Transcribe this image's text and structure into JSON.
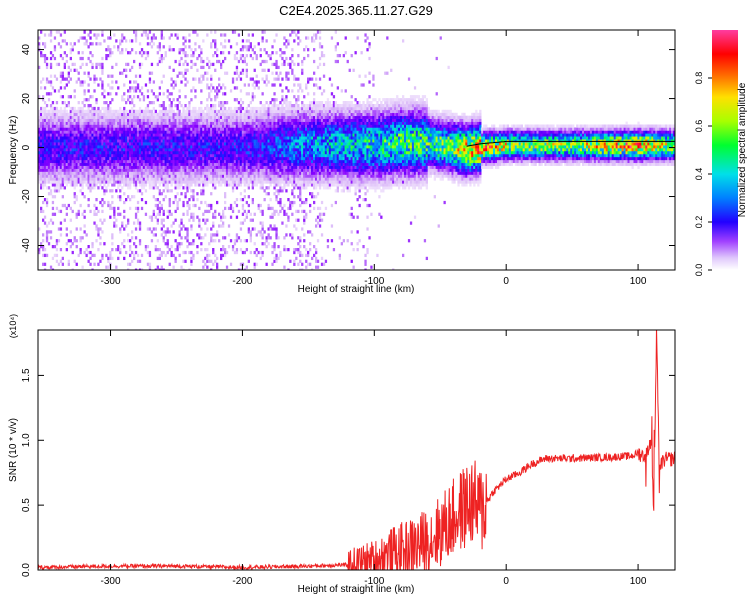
{
  "title": "C2E4.2025.365.11.27.G29",
  "chart_data": [
    {
      "type": "heatmap",
      "xlabel": "Height of straight line (km)",
      "ylabel": "Frequency (Hz)",
      "xlim": [
        -355,
        128
      ],
      "ylim": [
        -50,
        48
      ],
      "xticks": [
        -300,
        -200,
        -100,
        0,
        100
      ],
      "xtick_labels": [
        "-300",
        "-200",
        "-100",
        "0",
        "100"
      ],
      "yticks": [
        -40,
        -20,
        0,
        20,
        40
      ],
      "ytick_labels": [
        "-40",
        "-20",
        "0",
        "20",
        "40"
      ],
      "colorbar": {
        "label": "Normalized spectral amplitude",
        "range": [
          0,
          1
        ],
        "ticks": [
          0.0,
          0.2,
          0.4,
          0.6,
          0.8
        ],
        "tick_labels": [
          "0.0",
          "0.2",
          "0.4",
          "0.6",
          "0.8"
        ],
        "colormap": [
          "#ffffff",
          "#d8b4f8",
          "#8800ff",
          "#2b00ff",
          "#0088ff",
          "#00e0e0",
          "#00ff40",
          "#c0ff00",
          "#ffe000",
          "#ff6000",
          "#ff0000",
          "#ff40b0"
        ]
      },
      "signal_trace": {
        "x": [
          -355,
          -300,
          -250,
          -200,
          -150,
          -100,
          -80,
          -60,
          -40,
          -30,
          -20,
          0,
          20,
          50,
          80,
          100,
          110,
          120,
          128
        ],
        "y": [
          0,
          0,
          0,
          0,
          1,
          1,
          2,
          2,
          0,
          -1,
          0,
          1,
          1,
          1,
          1,
          1,
          1,
          1,
          1
        ],
        "peak_amplitude": [
          0.3,
          0.3,
          0.3,
          0.3,
          0.45,
          0.55,
          0.6,
          0.6,
          0.7,
          0.85,
          0.9,
          0.75,
          0.7,
          0.7,
          0.85,
          0.9,
          0.8,
          0.75,
          0.7
        ]
      },
      "grid": false
    },
    {
      "type": "line",
      "xlabel": "Height of straight line (km)",
      "ylabel": "SNR (10 * v/v)",
      "y_multiplier": "(x10⁴)",
      "xlim": [
        -355,
        128
      ],
      "ylim": [
        0,
        1.85
      ],
      "xticks": [
        -300,
        -200,
        -100,
        0,
        100
      ],
      "xtick_labels": [
        "-300",
        "-200",
        "-100",
        "0",
        "100"
      ],
      "yticks": [
        0.0,
        0.5,
        1.0,
        1.5
      ],
      "ytick_labels": [
        "0.0",
        "0.5",
        "1.0",
        "1.5"
      ],
      "color": "#ee2222",
      "series": [
        {
          "x": [
            -355,
            -300,
            -250,
            -200,
            -150,
            -120,
            -100,
            -90,
            -80,
            -70,
            -60,
            -50,
            -40,
            -30,
            -25,
            -20,
            -10,
            0,
            10,
            20,
            30,
            50,
            80,
            95,
            100,
            105,
            110,
            112,
            114,
            116,
            120,
            128
          ],
          "y": [
            0.02,
            0.03,
            0.03,
            0.02,
            0.03,
            0.04,
            0.07,
            0.12,
            0.15,
            0.18,
            0.22,
            0.3,
            0.4,
            0.5,
            0.52,
            0.45,
            0.6,
            0.7,
            0.75,
            0.82,
            0.86,
            0.86,
            0.87,
            0.88,
            0.9,
            0.88,
            1.0,
            0.4,
            1.85,
            0.8,
            0.85,
            0.86
          ]
        }
      ],
      "grid": false
    }
  ]
}
